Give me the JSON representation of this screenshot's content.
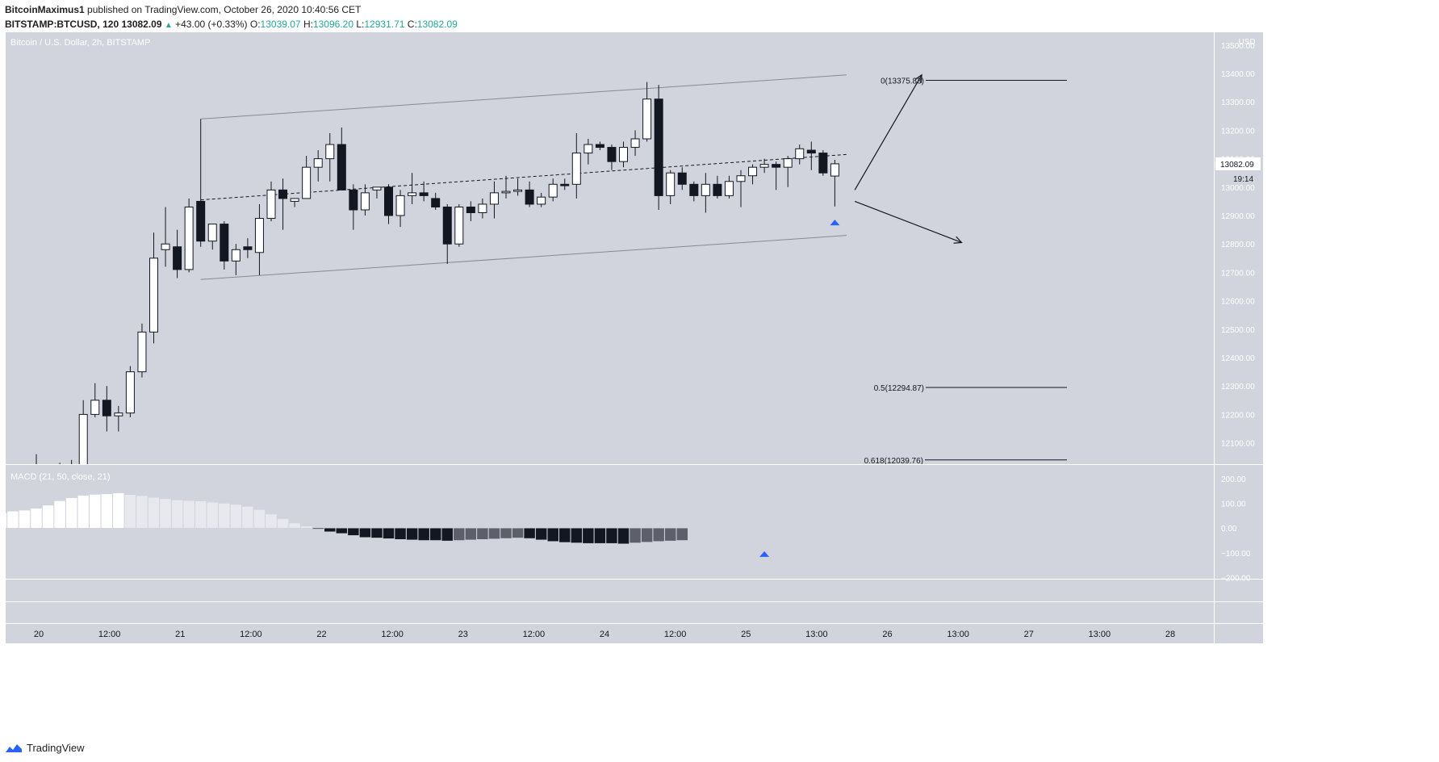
{
  "header": {
    "publisher": "BitcoinMaximus1",
    "published_text": "published on TradingView.com, October 26, 2020 10:40:56 CET",
    "symbol": "BITSTAMP:BTCUSD, 120",
    "last": "13082.09",
    "change_icon": "triangle-up-icon",
    "change_glyph": "▲",
    "change": "+43.00 (+0.33%)",
    "o_label": "O:",
    "o_value": "13039.07",
    "h_label": "H:",
    "h_value": "13096.20",
    "l_label": "L:",
    "l_value": "12931.71",
    "c_label": "C:",
    "c_value": "13082.09"
  },
  "colors": {
    "background": "#d1d4dc",
    "up_candle": "#ffffff",
    "down_candle": "#131722",
    "accent": "#26a69a",
    "marker": "#2962ff"
  },
  "footer": {
    "logo_text": "TradingView",
    "logo_icon": "tradingview-logo-icon"
  },
  "chart_data": {
    "type": "candlestick",
    "title": "Bitcoin / U.S. Dollar, 2h, BITSTAMP",
    "currency_label": "USD",
    "price_axis": {
      "ylim": [
        12025,
        13545
      ],
      "ticks": [
        "13500.00",
        "13400.00",
        "13300.00",
        "13200.00",
        "13100.00",
        "13000.00",
        "12900.00",
        "12800.00",
        "12700.00",
        "12600.00",
        "12500.00",
        "12400.00",
        "12300.00",
        "12200.00",
        "12100.00"
      ]
    },
    "x_tick_labels": [
      "20",
      "12:00",
      "21",
      "12:00",
      "22",
      "12:00",
      "23",
      "12:00",
      "24",
      "12:00",
      "25",
      "13:00",
      "26",
      "13:00",
      "27",
      "13:00",
      "28"
    ],
    "last_price_label": "13082.09",
    "countdown_label": "19:14",
    "candles": [
      {
        "o": 11900,
        "h": 12060,
        "l": 11850,
        "c": 11960
      },
      {
        "o": 11960,
        "h": 12010,
        "l": 11900,
        "c": 11980
      },
      {
        "o": 11980,
        "h": 12030,
        "l": 11950,
        "c": 12005
      },
      {
        "o": 12005,
        "h": 12040,
        "l": 11980,
        "c": 12000
      },
      {
        "o": 12000,
        "h": 12250,
        "l": 11990,
        "c": 12200
      },
      {
        "o": 12200,
        "h": 12310,
        "l": 12190,
        "c": 12250
      },
      {
        "o": 12250,
        "h": 12300,
        "l": 12140,
        "c": 12195
      },
      {
        "o": 12195,
        "h": 12230,
        "l": 12140,
        "c": 12205
      },
      {
        "o": 12205,
        "h": 12370,
        "l": 12190,
        "c": 12350
      },
      {
        "o": 12350,
        "h": 12520,
        "l": 12330,
        "c": 12490
      },
      {
        "o": 12490,
        "h": 12840,
        "l": 12450,
        "c": 12750
      },
      {
        "o": 12780,
        "h": 12930,
        "l": 12720,
        "c": 12800
      },
      {
        "o": 12790,
        "h": 12850,
        "l": 12680,
        "c": 12710
      },
      {
        "o": 12710,
        "h": 12960,
        "l": 12700,
        "c": 12930
      },
      {
        "o": 12950,
        "h": 13240,
        "l": 12790,
        "c": 12810
      },
      {
        "o": 12810,
        "h": 12870,
        "l": 12780,
        "c": 12870
      },
      {
        "o": 12870,
        "h": 12880,
        "l": 12710,
        "c": 12740
      },
      {
        "o": 12740,
        "h": 12800,
        "l": 12690,
        "c": 12780
      },
      {
        "o": 12790,
        "h": 12820,
        "l": 12750,
        "c": 12780
      },
      {
        "o": 12770,
        "h": 12940,
        "l": 12690,
        "c": 12890
      },
      {
        "o": 12890,
        "h": 13020,
        "l": 12880,
        "c": 12990
      },
      {
        "o": 12990,
        "h": 13030,
        "l": 12850,
        "c": 12960
      },
      {
        "o": 12950,
        "h": 12960,
        "l": 12930,
        "c": 12960
      },
      {
        "o": 12960,
        "h": 13110,
        "l": 12960,
        "c": 13070
      },
      {
        "o": 13070,
        "h": 13130,
        "l": 13020,
        "c": 13100
      },
      {
        "o": 13100,
        "h": 13190,
        "l": 13020,
        "c": 13150
      },
      {
        "o": 13150,
        "h": 13210,
        "l": 12990,
        "c": 12990
      },
      {
        "o": 12990,
        "h": 13010,
        "l": 12850,
        "c": 12920
      },
      {
        "o": 12920,
        "h": 13010,
        "l": 12900,
        "c": 12980
      },
      {
        "o": 12990,
        "h": 13000,
        "l": 12960,
        "c": 13000
      },
      {
        "o": 13000,
        "h": 13010,
        "l": 12870,
        "c": 12900
      },
      {
        "o": 12900,
        "h": 12990,
        "l": 12860,
        "c": 12970
      },
      {
        "o": 12970,
        "h": 13050,
        "l": 12940,
        "c": 12980
      },
      {
        "o": 12980,
        "h": 13020,
        "l": 12950,
        "c": 12970
      },
      {
        "o": 12960,
        "h": 12980,
        "l": 12920,
        "c": 12930
      },
      {
        "o": 12930,
        "h": 12940,
        "l": 12730,
        "c": 12800
      },
      {
        "o": 12800,
        "h": 12940,
        "l": 12790,
        "c": 12930
      },
      {
        "o": 12930,
        "h": 12950,
        "l": 12880,
        "c": 12910
      },
      {
        "o": 12910,
        "h": 12960,
        "l": 12890,
        "c": 12940
      },
      {
        "o": 12940,
        "h": 13020,
        "l": 12890,
        "c": 12980
      },
      {
        "o": 12980,
        "h": 13040,
        "l": 12960,
        "c": 12985
      },
      {
        "o": 12985,
        "h": 13030,
        "l": 12970,
        "c": 12990
      },
      {
        "o": 12990,
        "h": 13020,
        "l": 12930,
        "c": 12940
      },
      {
        "o": 12940,
        "h": 12980,
        "l": 12930,
        "c": 12965
      },
      {
        "o": 12965,
        "h": 13030,
        "l": 12950,
        "c": 13010
      },
      {
        "o": 13010,
        "h": 13030,
        "l": 12990,
        "c": 13005
      },
      {
        "o": 13010,
        "h": 13190,
        "l": 12960,
        "c": 13120
      },
      {
        "o": 13120,
        "h": 13170,
        "l": 13080,
        "c": 13150
      },
      {
        "o": 13150,
        "h": 13160,
        "l": 13130,
        "c": 13140
      },
      {
        "o": 13140,
        "h": 13150,
        "l": 13060,
        "c": 13090
      },
      {
        "o": 13090,
        "h": 13160,
        "l": 13070,
        "c": 13140
      },
      {
        "o": 13140,
        "h": 13200,
        "l": 13110,
        "c": 13170
      },
      {
        "o": 13170,
        "h": 13370,
        "l": 13160,
        "c": 13310
      },
      {
        "o": 13310,
        "h": 13360,
        "l": 12920,
        "c": 12970
      },
      {
        "o": 12970,
        "h": 13060,
        "l": 12940,
        "c": 13050
      },
      {
        "o": 13050,
        "h": 13070,
        "l": 12990,
        "c": 13010
      },
      {
        "o": 13010,
        "h": 13020,
        "l": 12950,
        "c": 12970
      },
      {
        "o": 12970,
        "h": 13050,
        "l": 12910,
        "c": 13010
      },
      {
        "o": 13010,
        "h": 13040,
        "l": 12960,
        "c": 12970
      },
      {
        "o": 12970,
        "h": 13040,
        "l": 12960,
        "c": 13020
      },
      {
        "o": 13020,
        "h": 13060,
        "l": 12930,
        "c": 13040
      },
      {
        "o": 13040,
        "h": 13080,
        "l": 13010,
        "c": 13070
      },
      {
        "o": 13070,
        "h": 13100,
        "l": 13050,
        "c": 13080
      },
      {
        "o": 13080,
        "h": 13090,
        "l": 12990,
        "c": 13070
      },
      {
        "o": 13070,
        "h": 13110,
        "l": 13000,
        "c": 13100
      },
      {
        "o": 13100,
        "h": 13150,
        "l": 13080,
        "c": 13135
      },
      {
        "o": 13130,
        "h": 13160,
        "l": 13060,
        "c": 13120
      },
      {
        "o": 13120,
        "h": 13130,
        "l": 13040,
        "c": 13050
      },
      {
        "o": 13039.07,
        "h": 13096.2,
        "l": 12931.71,
        "c": 13082.09
      }
    ],
    "fib_levels": [
      {
        "label": "0(13375.83)",
        "price": 13375.83
      },
      {
        "label": "0.5(12294.87)",
        "price": 12294.87
      },
      {
        "label": "0.618(12039.76)",
        "price": 12039.76
      }
    ],
    "channel": {
      "upper": [
        [
          14,
          13240
        ],
        [
          69,
          13395
        ]
      ],
      "lower": [
        [
          14,
          12675
        ],
        [
          69,
          12830
        ]
      ],
      "middle": [
        [
          14,
          12955
        ],
        [
          69,
          13115
        ]
      ]
    },
    "projections": [
      {
        "from": [
          69.7,
          12990
        ],
        "to": [
          75.4,
          13395
        ]
      },
      {
        "from": [
          69.7,
          12950
        ],
        "to": [
          78.8,
          12805
        ]
      }
    ],
    "price_marker": {
      "index": 68,
      "price": 12880
    },
    "macd": {
      "label": "MACD (21, 50, close, 21)",
      "ylim": [
        -205,
        255
      ],
      "ticks": [
        "200.00",
        "100.00",
        "0.00",
        "−100.00",
        "−200.00"
      ],
      "histogram": [
        35,
        40,
        45,
        50,
        52,
        50,
        48,
        50,
        45,
        48,
        50,
        54,
        58,
        60,
        62,
        68,
        72,
        80,
        92,
        110,
        122,
        132,
        136,
        138,
        142,
        135,
        130,
        124,
        118,
        114,
        111,
        109,
        104,
        100,
        95,
        87,
        74,
        56,
        38,
        20,
        8,
        -4,
        -15,
        -22,
        -30,
        -38,
        -40,
        -43,
        -46,
        -48,
        -50,
        -50,
        -52,
        -50,
        -48,
        -46,
        -44,
        -42,
        -40,
        -42,
        -48,
        -54,
        -58,
        -60,
        -62,
        -62,
        -62,
        -64,
        -60,
        -57,
        -54,
        -52,
        -50
      ],
      "histogram_start_index": -17,
      "marker_index": 62
    }
  }
}
